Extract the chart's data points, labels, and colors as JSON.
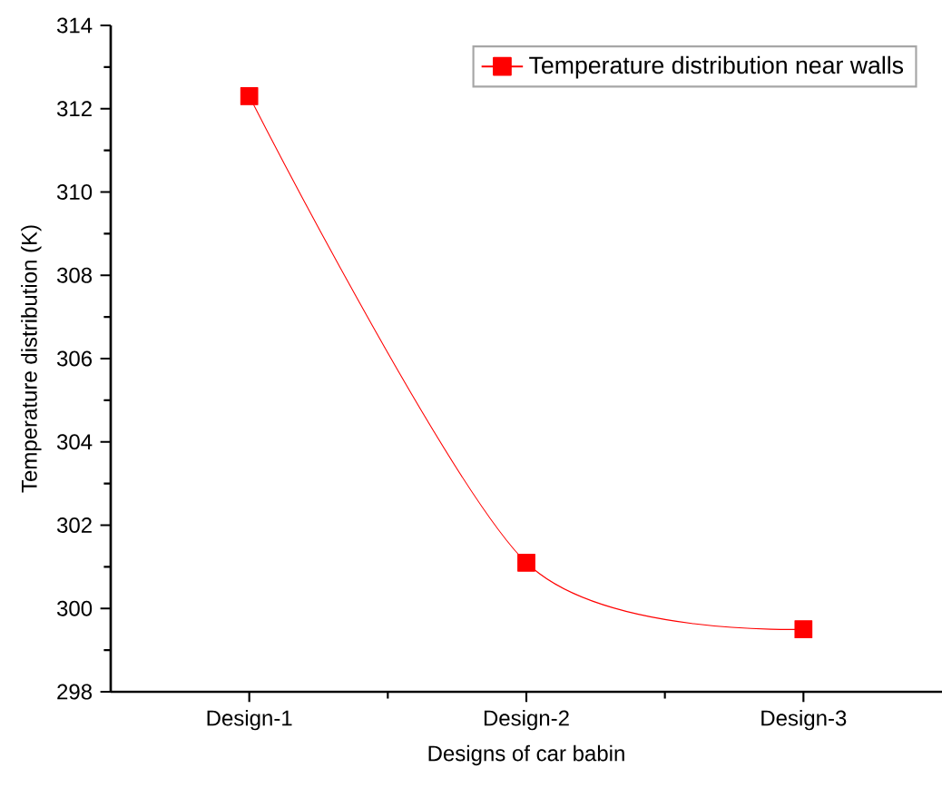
{
  "chart_data": {
    "type": "line",
    "xlabel": "Designs of car babin",
    "ylabel": "Temperature distribution (K)",
    "categories": [
      "Design-1",
      "Design-2",
      "Design-3"
    ],
    "series": [
      {
        "name": "Temperature distribution near walls",
        "color": "#ff0000",
        "values": [
          312.3,
          301.1,
          299.5
        ]
      }
    ],
    "ylim": [
      298,
      314
    ],
    "yticks": [
      298,
      300,
      302,
      304,
      306,
      308,
      310,
      312,
      314
    ],
    "marker": "square",
    "line_style": "solid",
    "legend": "top right",
    "grid": false
  }
}
